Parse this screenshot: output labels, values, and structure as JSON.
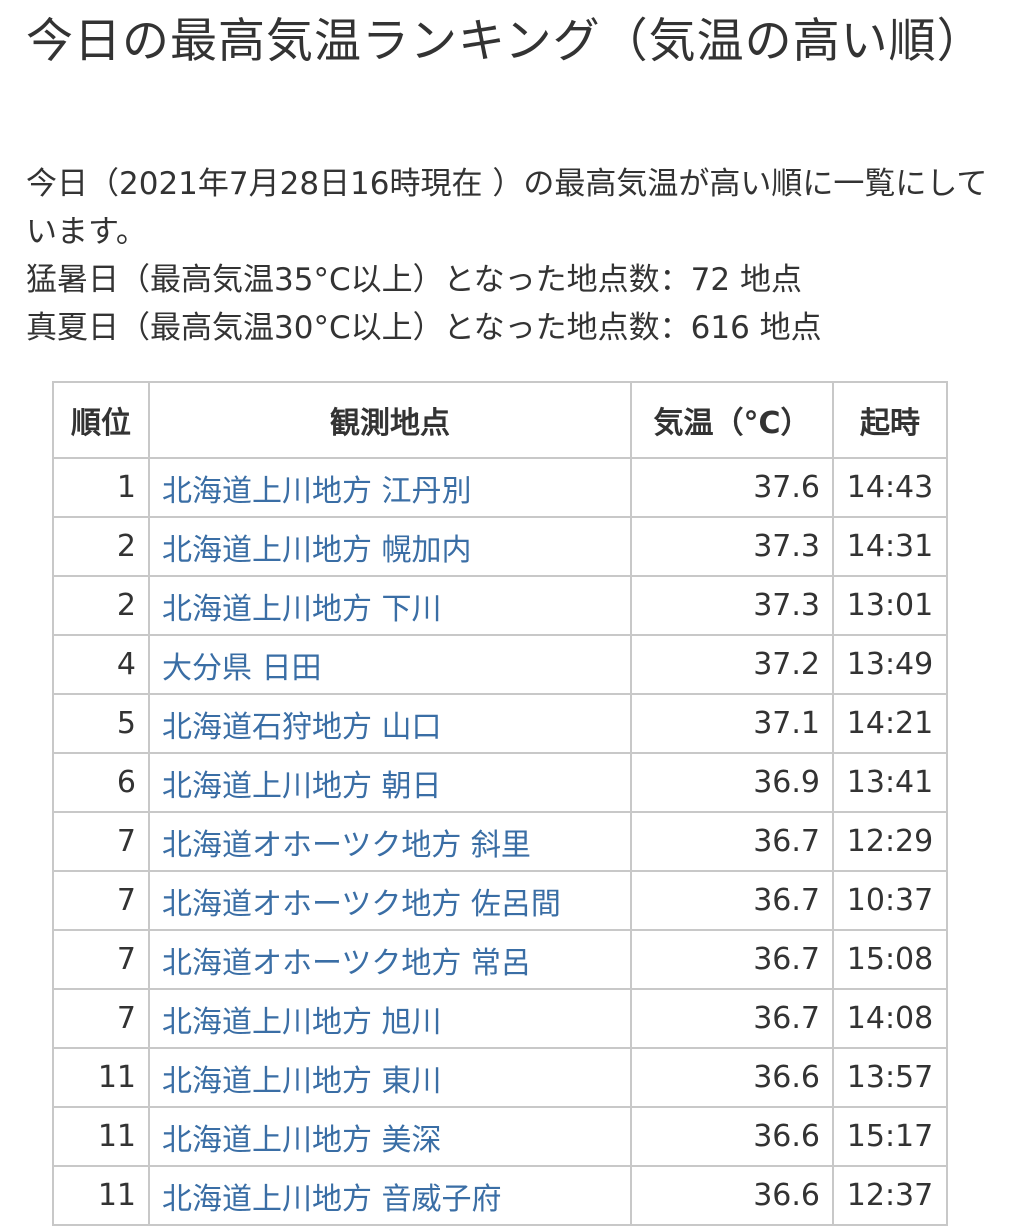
{
  "title": "今日の最高気温ランキング（気温の高い順）",
  "description": {
    "line1": "今日（2021年7月28日16時現在 ）の最高気温が高い順に一覧にしています。",
    "line2": "猛暑日（最高気温35°C以上）となった地点数：72 地点",
    "line3": "真夏日（最高気温30°C以上）となった地点数：616 地点"
  },
  "table": {
    "headers": {
      "rank": "順位",
      "location": "観測地点",
      "temperature": "気温（°C）",
      "time": "起時"
    },
    "rows": [
      {
        "rank": "1",
        "location": "北海道上川地方 江丹別",
        "temperature": "37.6",
        "time": "14:43"
      },
      {
        "rank": "2",
        "location": "北海道上川地方 幌加内",
        "temperature": "37.3",
        "time": "14:31"
      },
      {
        "rank": "2",
        "location": "北海道上川地方 下川",
        "temperature": "37.3",
        "time": "13:01"
      },
      {
        "rank": "4",
        "location": "大分県 日田",
        "temperature": "37.2",
        "time": "13:49"
      },
      {
        "rank": "5",
        "location": "北海道石狩地方 山口",
        "temperature": "37.1",
        "time": "14:21"
      },
      {
        "rank": "6",
        "location": "北海道上川地方 朝日",
        "temperature": "36.9",
        "time": "13:41"
      },
      {
        "rank": "7",
        "location": "北海道オホーツク地方 斜里",
        "temperature": "36.7",
        "time": "12:29"
      },
      {
        "rank": "7",
        "location": "北海道オホーツク地方 佐呂間",
        "temperature": "36.7",
        "time": "10:37"
      },
      {
        "rank": "7",
        "location": "北海道オホーツク地方 常呂",
        "temperature": "36.7",
        "time": "15:08"
      },
      {
        "rank": "7",
        "location": "北海道上川地方 旭川",
        "temperature": "36.7",
        "time": "14:08"
      },
      {
        "rank": "11",
        "location": "北海道上川地方 東川",
        "temperature": "36.6",
        "time": "13:57"
      },
      {
        "rank": "11",
        "location": "北海道上川地方 美深",
        "temperature": "36.6",
        "time": "15:17"
      },
      {
        "rank": "11",
        "location": "北海道上川地方 音威子府",
        "temperature": "36.6",
        "time": "12:37"
      }
    ]
  },
  "colors": {
    "text": "#333333",
    "link": "#3a6ea5",
    "border": "#c8c8c8"
  }
}
